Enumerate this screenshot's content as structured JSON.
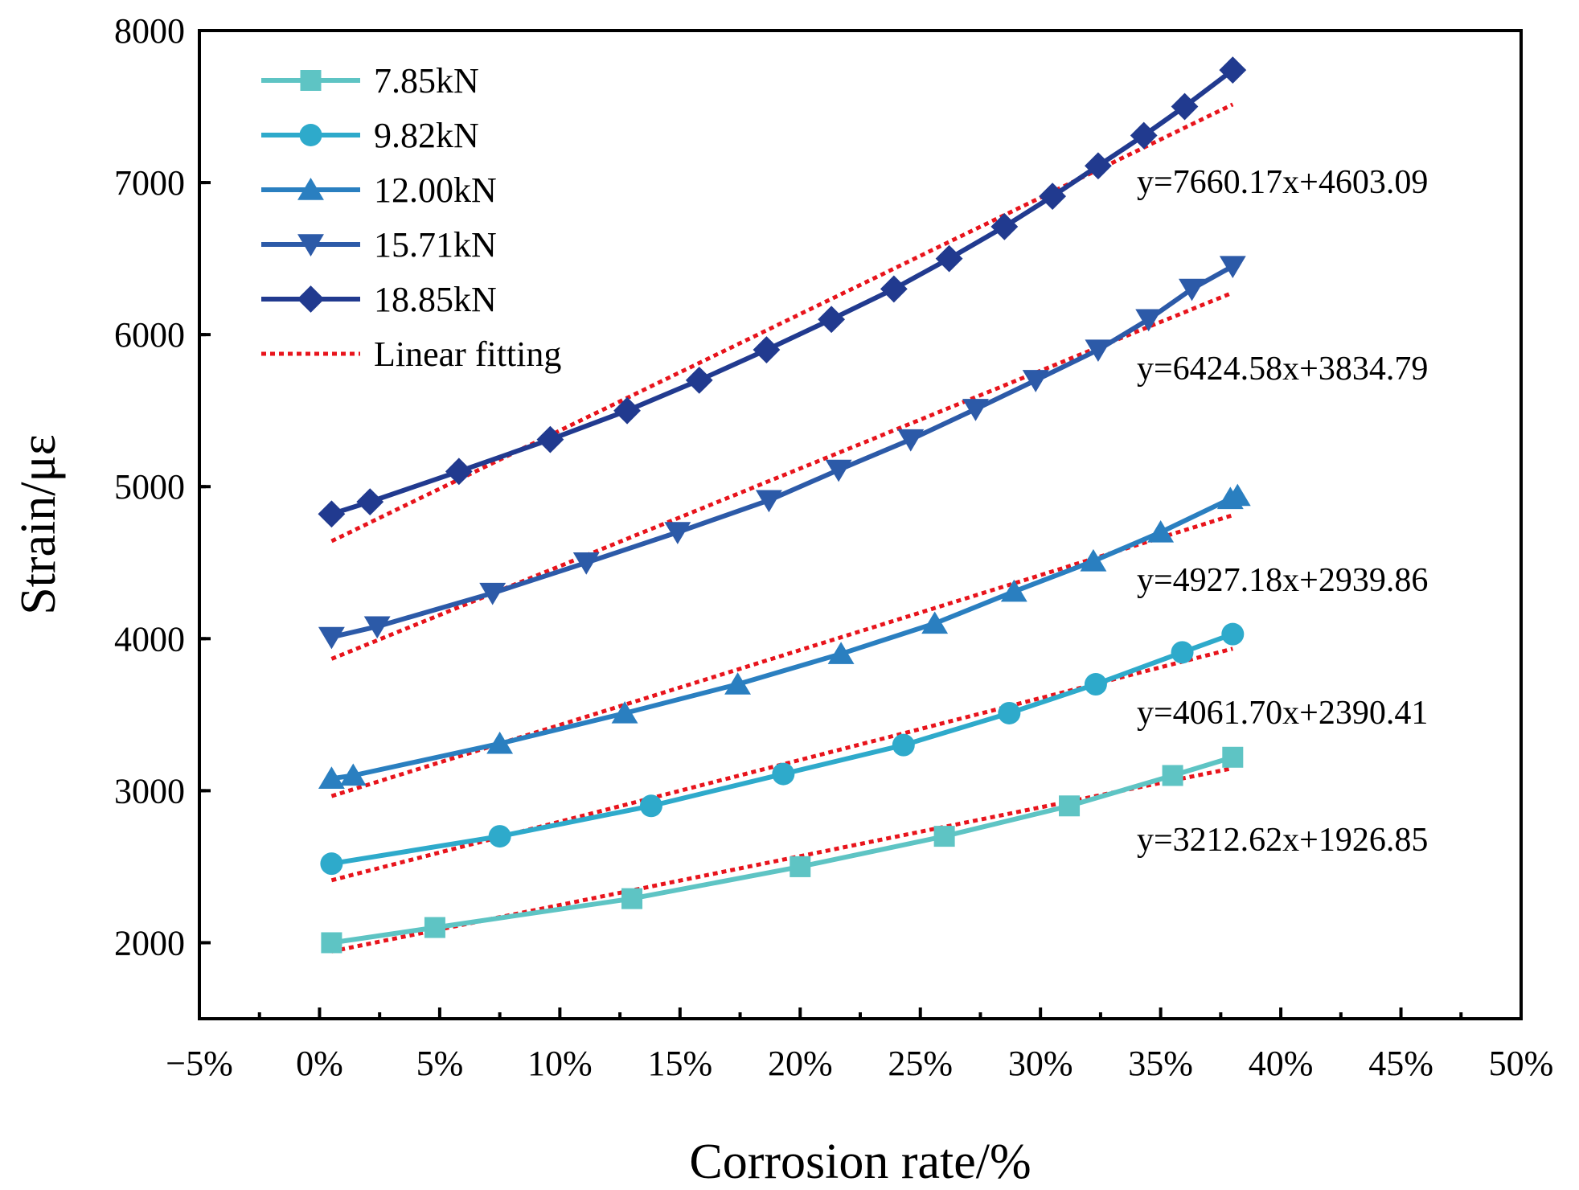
{
  "chart_data": {
    "type": "line",
    "title": "",
    "xlabel": "Corrosion rate/%",
    "ylabel": "Strain/με",
    "xlim": [
      -5,
      50
    ],
    "ylim": [
      1500,
      8000
    ],
    "x_ticks": [
      -5,
      0,
      5,
      10,
      15,
      20,
      25,
      30,
      35,
      40,
      45,
      50
    ],
    "x_tick_labels": [
      "−5%",
      "0%",
      "5%",
      "10%",
      "15%",
      "20%",
      "25%",
      "30%",
      "35%",
      "40%",
      "45%",
      "50%"
    ],
    "y_ticks": [
      2000,
      3000,
      4000,
      5000,
      6000,
      7000,
      8000
    ],
    "y_tick_labels": [
      "2000",
      "3000",
      "4000",
      "5000",
      "6000",
      "7000",
      "8000"
    ],
    "grid": false,
    "legend_position": "top-left",
    "series": [
      {
        "name": "7.85kN",
        "color": "#5ec4c4",
        "marker": "square",
        "x": [
          0.5,
          4.8,
          13,
          20,
          26,
          31.2,
          35.5,
          38
        ],
        "y": [
          2000,
          2100,
          2290,
          2500,
          2700,
          2900,
          3100,
          3220
        ],
        "fit": {
          "equation": "y=3212.62x+1926.85",
          "slope": 3212.62,
          "intercept": 1926.85
        }
      },
      {
        "name": "9.82kN",
        "color": "#2eaacb",
        "marker": "circle",
        "x": [
          0.5,
          7.5,
          13.8,
          19.3,
          24.3,
          28.7,
          32.3,
          35.9,
          38
        ],
        "y": [
          2520,
          2700,
          2900,
          3110,
          3300,
          3510,
          3700,
          3910,
          4030
        ],
        "fit": {
          "equation": "y=4061.70x+2390.41",
          "slope": 4061.7,
          "intercept": 2390.41
        }
      },
      {
        "name": "12.00kN",
        "color": "#2a7fc0",
        "marker": "triangle-up",
        "x": [
          0.5,
          1.4,
          7.5,
          12.7,
          17.4,
          21.7,
          25.6,
          28.9,
          32.2,
          35,
          37.9,
          38.2
        ],
        "y": [
          3080,
          3100,
          3310,
          3510,
          3700,
          3900,
          4100,
          4310,
          4510,
          4700,
          4920,
          4940
        ],
        "fit": {
          "equation": "y=4927.18x+2939.86",
          "slope": 4927.18,
          "intercept": 2939.86
        }
      },
      {
        "name": "15.71kN",
        "color": "#2c5aa8",
        "marker": "triangle-down",
        "x": [
          0.5,
          2.4,
          7.2,
          11.1,
          14.9,
          18.7,
          21.6,
          24.6,
          27.3,
          29.8,
          32.4,
          34.5,
          36.3,
          38
        ],
        "y": [
          4010,
          4080,
          4300,
          4500,
          4700,
          4910,
          5110,
          5310,
          5510,
          5700,
          5900,
          6100,
          6300,
          6450
        ],
        "fit": {
          "equation": "y=6424.58x+3834.79",
          "slope": 6424.58,
          "intercept": 3834.79
        }
      },
      {
        "name": "18.85kN",
        "color": "#213a8f",
        "marker": "diamond",
        "x": [
          0.5,
          2.1,
          5.8,
          9.6,
          12.8,
          15.8,
          18.6,
          21.3,
          23.9,
          26.2,
          28.5,
          30.5,
          32.4,
          34.3,
          36,
          38
        ],
        "y": [
          4820,
          4900,
          5100,
          5310,
          5500,
          5700,
          5900,
          6100,
          6300,
          6500,
          6710,
          6910,
          7110,
          7310,
          7500,
          7740
        ],
        "fit": {
          "equation": "y=7660.17x+4603.09",
          "slope": 7660.17,
          "intercept": 4603.09
        }
      }
    ],
    "fit_legend_label": "Linear fitting",
    "fit_color": "#e8141c",
    "fit_x_range": [
      0.5,
      38
    ]
  }
}
